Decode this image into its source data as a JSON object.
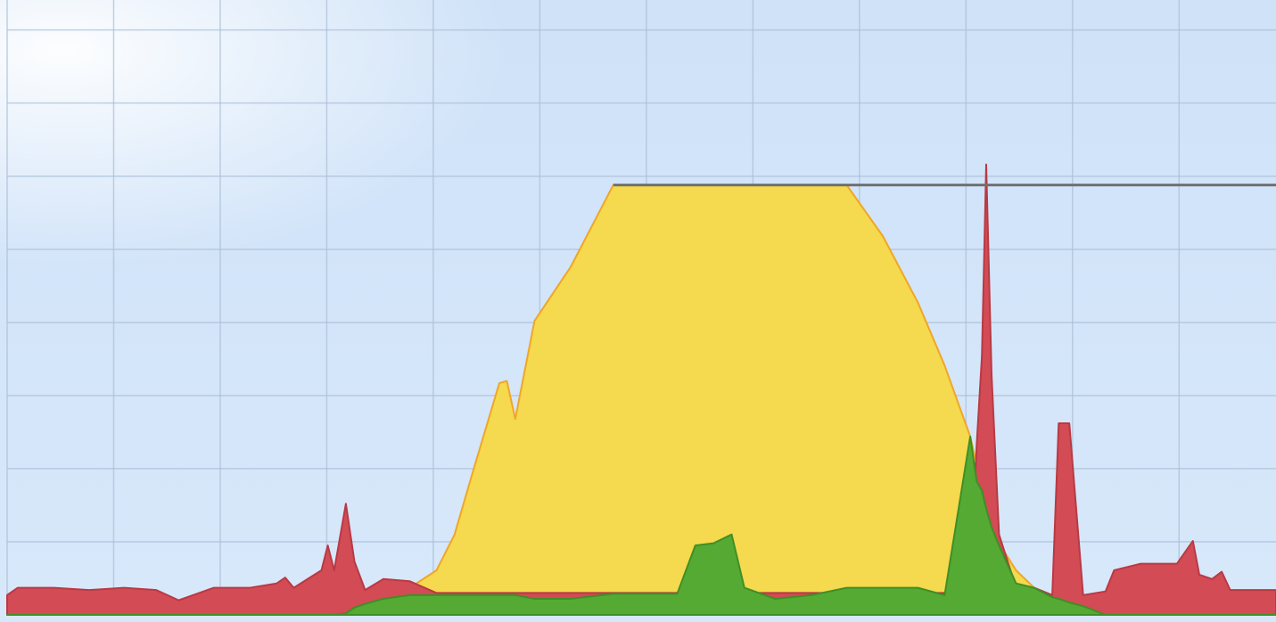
{
  "chart_data": {
    "type": "area",
    "x": [
      0,
      0.1,
      0.44,
      0.77,
      1.1,
      1.4,
      1.61,
      1.94,
      2.28,
      2.53,
      2.61,
      2.69,
      2.95,
      3.01,
      3.07,
      3.18,
      3.26,
      3.36,
      3.53,
      3.78,
      4.03,
      4.2,
      4.37,
      4.62,
      4.69,
      4.77,
      4.95,
      5.29,
      5.69,
      6.29,
      6.46,
      6.63,
      6.8,
      6.92,
      7.21,
      7.55,
      7.88,
      8.22,
      8.55,
      8.8,
      9.04,
      9.1,
      9.15,
      9.19,
      9.24,
      9.31,
      9.47,
      9.64,
      9.81,
      9.87,
      9.97,
      10.1,
      10.31,
      10.39,
      10.64,
      10.98,
      11.13,
      11.19,
      11.31,
      11.4,
      11.48,
      11.91
    ],
    "series": [
      {
        "color": "#f5d94e",
        "edge_color": "#f0a626",
        "values": [
          0,
          0,
          0,
          0,
          0,
          0,
          0,
          0,
          0,
          0,
          0,
          0,
          0,
          0,
          0,
          0,
          0.05,
          0.12,
          0.22,
          0.37,
          0.61,
          1.1,
          1.95,
          3.17,
          3.2,
          2.68,
          4.02,
          4.76,
          5.88,
          5.88,
          5.88,
          5.88,
          5.88,
          5.88,
          5.88,
          5.88,
          5.88,
          5.18,
          4.27,
          3.41,
          2.44,
          2.07,
          1.77,
          1.52,
          1.22,
          0.98,
          0.61,
          0.37,
          0.24,
          0.22,
          0.17,
          0.12,
          0,
          0,
          0,
          0,
          0,
          0,
          0,
          0,
          0,
          0
        ]
      },
      {
        "color": "#d34b55",
        "edge_color": "#b83a44",
        "values": [
          0.27,
          0.37,
          0.37,
          0.34,
          0.37,
          0.34,
          0.2,
          0.37,
          0.37,
          0.43,
          0.51,
          0.37,
          0.61,
          0.95,
          0.61,
          1.52,
          0.73,
          0.34,
          0.49,
          0.46,
          0.3,
          0.3,
          0.3,
          0.3,
          0.3,
          0.3,
          0.3,
          0.3,
          0.3,
          0.3,
          0.3,
          0.3,
          0.3,
          0.3,
          0.3,
          0.3,
          0.3,
          0.3,
          0.3,
          0.3,
          0.37,
          2.32,
          3.54,
          6.16,
          3.29,
          1.1,
          0.37,
          0.37,
          0.27,
          2.62,
          2.62,
          0.27,
          0.32,
          0.61,
          0.7,
          0.7,
          1.01,
          0.55,
          0.49,
          0.59,
          0.34,
          0.34
        ]
      },
      {
        "color": "#55aa34",
        "edge_color": "#3f8f25",
        "values": [
          0,
          0,
          0,
          0,
          0,
          0,
          0,
          0,
          0,
          0,
          0,
          0,
          0,
          0,
          0,
          0.02,
          0.1,
          0.15,
          0.22,
          0.27,
          0.27,
          0.27,
          0.27,
          0.27,
          0.27,
          0.27,
          0.22,
          0.22,
          0.29,
          0.29,
          0.95,
          0.98,
          1.1,
          0.37,
          0.22,
          0.27,
          0.37,
          0.37,
          0.37,
          0.27,
          2.44,
          1.83,
          1.7,
          1.45,
          1.2,
          0.95,
          0.43,
          0.37,
          0.24,
          0.22,
          0.17,
          0.12,
          0,
          0,
          0,
          0,
          0,
          0,
          0,
          0,
          0,
          0
        ]
      }
    ],
    "limit": 5.88,
    "limit_color": "#707070",
    "xlim": [
      0,
      11.91
    ],
    "ylim": [
      0,
      8.41
    ],
    "xticks": [
      0,
      1,
      2,
      3,
      4,
      5,
      6,
      7,
      8,
      9,
      10,
      11
    ],
    "yticks": [
      0,
      1,
      2,
      3,
      4,
      5,
      6,
      7,
      8
    ],
    "grid": true
  }
}
